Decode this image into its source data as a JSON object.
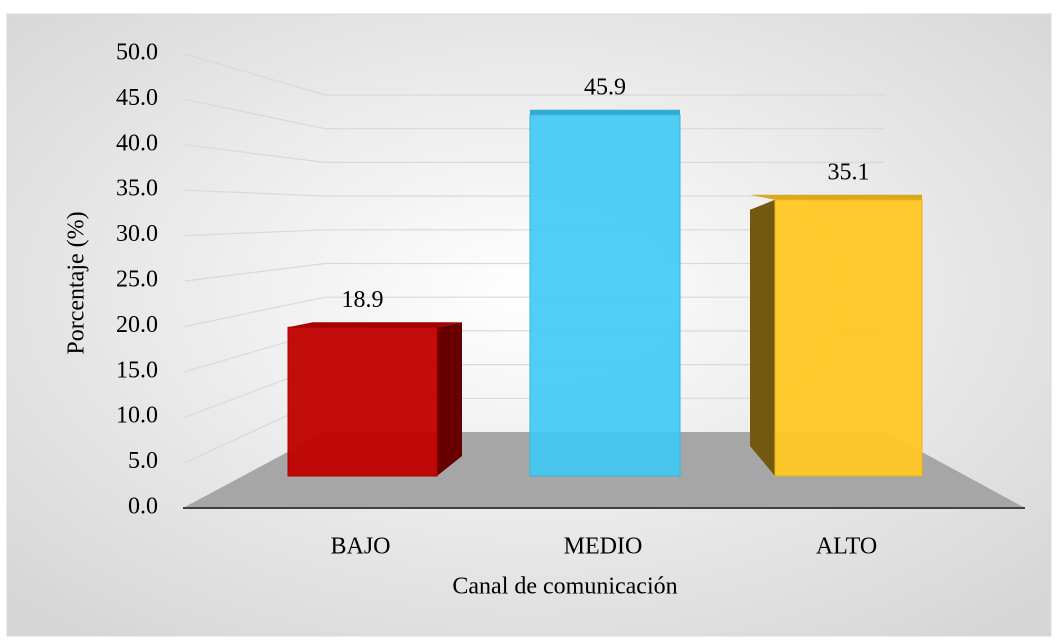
{
  "chart_data": {
    "type": "bar",
    "x_label": "Canal de comunicación",
    "y_label": "Porcentaje (%)",
    "categories": [
      "BAJO",
      "MEDIO",
      "ALTO"
    ],
    "values": [
      18.9,
      45.9,
      35.1
    ],
    "colors": [
      "#c00000",
      "#3ec9f5",
      "#ffc722"
    ],
    "ylim": [
      0,
      50
    ],
    "yticks": [
      {
        "value": 0,
        "label": "0.0"
      },
      {
        "value": 5,
        "label": "5.0"
      },
      {
        "value": 10,
        "label": "10.0"
      },
      {
        "value": 15,
        "label": "15.0"
      },
      {
        "value": 20,
        "label": "20.0"
      },
      {
        "value": 25,
        "label": "25.0"
      },
      {
        "value": 30,
        "label": "30.0"
      },
      {
        "value": 35,
        "label": "35.0"
      },
      {
        "value": 40,
        "label": "40.0"
      },
      {
        "value": 45,
        "label": "45.0"
      },
      {
        "value": 50,
        "label": "50.0"
      }
    ],
    "grid": true
  }
}
